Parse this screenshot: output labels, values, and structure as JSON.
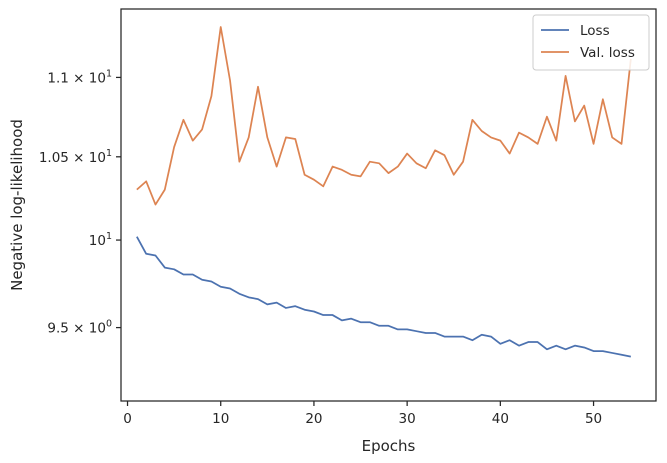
{
  "chart_data": {
    "type": "line",
    "xlabel": "Epochs",
    "ylabel": "Negative log-likelihood",
    "y_scale": "log",
    "xlim": [
      -0.7,
      56.7
    ],
    "ylim": [
      9.1,
      11.45
    ],
    "x_ticks": [
      0,
      10,
      20,
      30,
      40,
      50
    ],
    "x_tick_labels": [
      "0",
      "10",
      "20",
      "30",
      "40",
      "50"
    ],
    "y_ticks": [
      9.5,
      10,
      10.5,
      11
    ],
    "y_tick_labels": [
      {
        "base": "9.5 × 10",
        "exp": "0"
      },
      {
        "base": "10",
        "exp": "1"
      },
      {
        "base": "1.05 × 10",
        "exp": "1"
      },
      {
        "base": "1.1 × 10",
        "exp": "1"
      }
    ],
    "legend_position": "top-right",
    "grid": false,
    "x": [
      1,
      2,
      3,
      4,
      5,
      6,
      7,
      8,
      9,
      10,
      11,
      12,
      13,
      14,
      15,
      16,
      17,
      18,
      19,
      20,
      21,
      22,
      23,
      24,
      25,
      26,
      27,
      28,
      29,
      30,
      31,
      32,
      33,
      34,
      35,
      36,
      37,
      38,
      39,
      40,
      41,
      42,
      43,
      44,
      45,
      46,
      47,
      48,
      49,
      50,
      51,
      52,
      53,
      54
    ],
    "series": [
      {
        "name": "Loss",
        "color": "#4c72b0",
        "values": [
          10.02,
          9.92,
          9.91,
          9.84,
          9.83,
          9.8,
          9.8,
          9.77,
          9.76,
          9.73,
          9.72,
          9.69,
          9.67,
          9.66,
          9.63,
          9.64,
          9.61,
          9.62,
          9.6,
          9.59,
          9.57,
          9.57,
          9.54,
          9.55,
          9.53,
          9.53,
          9.51,
          9.51,
          9.49,
          9.49,
          9.48,
          9.47,
          9.47,
          9.45,
          9.45,
          9.45,
          9.43,
          9.46,
          9.45,
          9.41,
          9.43,
          9.4,
          9.42,
          9.42,
          9.38,
          9.4,
          9.38,
          9.4,
          9.39,
          9.37,
          9.37,
          9.36,
          9.35,
          9.34
        ]
      },
      {
        "name": "Val. loss",
        "color": "#dd8452",
        "values": [
          10.3,
          10.35,
          10.21,
          10.3,
          10.56,
          10.73,
          10.6,
          10.67,
          10.88,
          11.33,
          10.98,
          10.47,
          10.62,
          10.94,
          10.62,
          10.44,
          10.62,
          10.61,
          10.39,
          10.36,
          10.32,
          10.44,
          10.42,
          10.39,
          10.38,
          10.47,
          10.46,
          10.4,
          10.44,
          10.52,
          10.46,
          10.43,
          10.54,
          10.51,
          10.39,
          10.47,
          10.73,
          10.66,
          10.62,
          10.6,
          10.52,
          10.65,
          10.62,
          10.58,
          10.75,
          10.6,
          11.01,
          10.72,
          10.82,
          10.58,
          10.86,
          10.62,
          10.58,
          11.12
        ]
      }
    ]
  }
}
